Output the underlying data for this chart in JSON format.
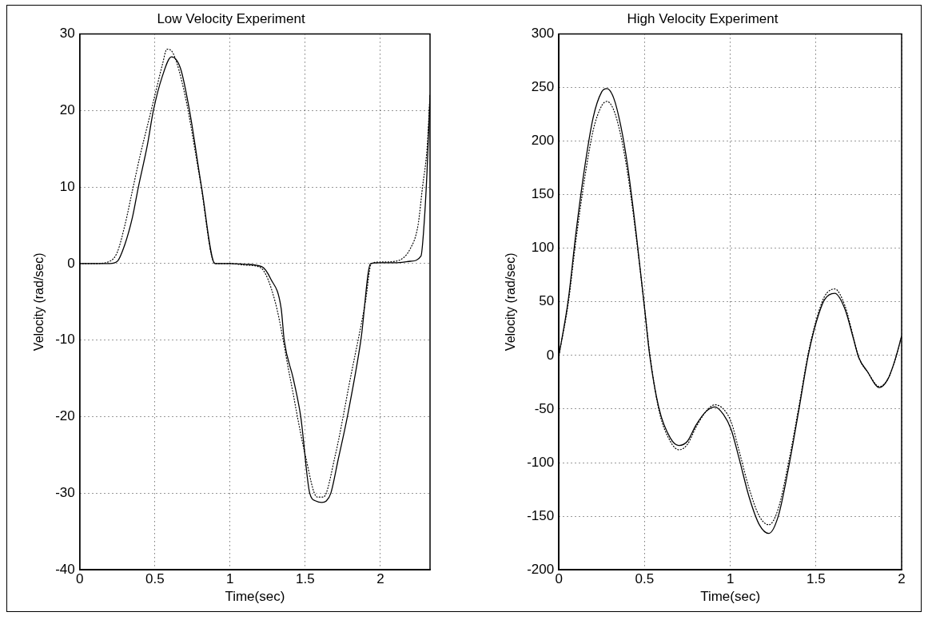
{
  "chart_data": [
    {
      "type": "line",
      "title": "Low Velocity Experiment",
      "xlabel": "Time(sec)",
      "ylabel": "Velocity (rad/sec)",
      "xlim": [
        0,
        2.33
      ],
      "xticks": [
        0,
        0.5,
        1,
        1.5,
        2
      ],
      "ylim": [
        -40,
        30
      ],
      "yticks": [
        -40,
        -30,
        -20,
        -10,
        0,
        10,
        20,
        30
      ],
      "grid": true,
      "marker": "none",
      "series": [
        {
          "color": "#000000",
          "line_style": "solid",
          "x": [
            0,
            0.1,
            0.2,
            0.25,
            0.3,
            0.35,
            0.39,
            0.45,
            0.49,
            0.55,
            0.61,
            0.67,
            0.73,
            0.81,
            0.9,
            1.0,
            1.1,
            1.21,
            1.27,
            1.34,
            1.36,
            1.42,
            1.47,
            1.53,
            1.57,
            1.61,
            1.64,
            1.67,
            1.72,
            1.78,
            1.87,
            1.935,
            2.0,
            2.1,
            2.2,
            2.27,
            2.29,
            2.31,
            2.33
          ],
          "values": [
            0,
            0,
            0,
            0.3,
            2.5,
            6,
            10,
            15.5,
            20,
            24.5,
            27,
            25.5,
            20,
            10,
            0,
            0,
            -0.1,
            -0.4,
            -2,
            -5.9,
            -10,
            -15,
            -20,
            -30,
            -31,
            -31.2,
            -31,
            -30,
            -25.5,
            -20,
            -10,
            0,
            0.1,
            0.1,
            0.3,
            1,
            5,
            12,
            22
          ]
        },
        {
          "color": "#000000",
          "line_style": "dotted",
          "x": [
            0,
            0.1,
            0.2,
            0.25,
            0.3,
            0.35,
            0.4,
            0.45,
            0.5,
            0.55,
            0.58,
            0.62,
            0.7,
            0.8,
            0.9,
            1.0,
            1.1,
            1.2,
            1.3,
            1.4,
            1.5,
            1.58,
            1.62,
            1.7,
            1.8,
            1.9,
            1.94,
            2.0,
            2.1,
            2.2,
            2.25,
            2.28,
            2.31,
            2.33
          ],
          "values": [
            0,
            0,
            0.3,
            1.5,
            5,
            9.5,
            14,
            18,
            22,
            26,
            28,
            27.5,
            22,
            11,
            0,
            0,
            -0.2,
            -0.5,
            -5,
            -15,
            -25,
            -30.5,
            -30.5,
            -25,
            -15,
            -5,
            0,
            0.2,
            0.3,
            2,
            5,
            10,
            15,
            22
          ]
        }
      ]
    },
    {
      "type": "line",
      "title": "High Velocity Experiment",
      "xlabel": "Time(sec)",
      "ylabel": "Velocity (rad/sec)",
      "xlim": [
        0,
        2
      ],
      "xticks": [
        0,
        0.5,
        1,
        1.5,
        2
      ],
      "ylim": [
        -200,
        300
      ],
      "yticks": [
        -200,
        -150,
        -100,
        -50,
        0,
        50,
        100,
        150,
        200,
        250,
        300
      ],
      "grid": true,
      "marker": "none",
      "series": [
        {
          "color": "#000000",
          "line_style": "solid",
          "x": [
            0,
            0.054,
            0.1,
            0.15,
            0.2,
            0.25,
            0.28,
            0.32,
            0.36,
            0.4,
            0.45,
            0.5,
            0.53,
            0.585,
            0.65,
            0.7,
            0.75,
            0.8,
            0.86,
            0.91,
            0.96,
            1.005,
            1.05,
            1.11,
            1.17,
            1.225,
            1.28,
            1.34,
            1.4,
            1.455,
            1.5,
            1.55,
            1.61,
            1.67,
            1.72,
            1.75,
            1.8,
            1.87,
            1.92,
            1.96,
            2.0
          ],
          "values": [
            0,
            51,
            115,
            175,
            222,
            246,
            249,
            240,
            215,
            178,
            115,
            44,
            0,
            -50,
            -77,
            -84,
            -80,
            -65,
            -52,
            -48,
            -55,
            -69,
            -95,
            -132,
            -158,
            -166,
            -150,
            -105,
            -51,
            0,
            30,
            52,
            58,
            43,
            15,
            -2,
            -15,
            -30,
            -22,
            -5,
            18
          ]
        },
        {
          "color": "#000000",
          "line_style": "dotted",
          "x": [
            0,
            0.054,
            0.1,
            0.15,
            0.2,
            0.25,
            0.28,
            0.32,
            0.36,
            0.4,
            0.45,
            0.5,
            0.53,
            0.585,
            0.65,
            0.7,
            0.75,
            0.8,
            0.86,
            0.91,
            0.96,
            1.005,
            1.05,
            1.11,
            1.17,
            1.225,
            1.28,
            1.34,
            1.4,
            1.455,
            1.5,
            1.55,
            1.61,
            1.67,
            1.72,
            1.75,
            1.8,
            1.87,
            1.92,
            1.96,
            2.0
          ],
          "values": [
            0,
            48,
            108,
            165,
            210,
            233,
            237,
            229,
            206,
            171,
            112,
            44,
            2,
            -52,
            -80,
            -88,
            -83,
            -67,
            -52,
            -46,
            -50,
            -62,
            -88,
            -124,
            -150,
            -158,
            -143,
            -100,
            -48,
            2,
            32,
            55,
            62,
            46,
            16,
            -2,
            -15,
            -29,
            -22,
            -5,
            18
          ]
        }
      ]
    }
  ]
}
